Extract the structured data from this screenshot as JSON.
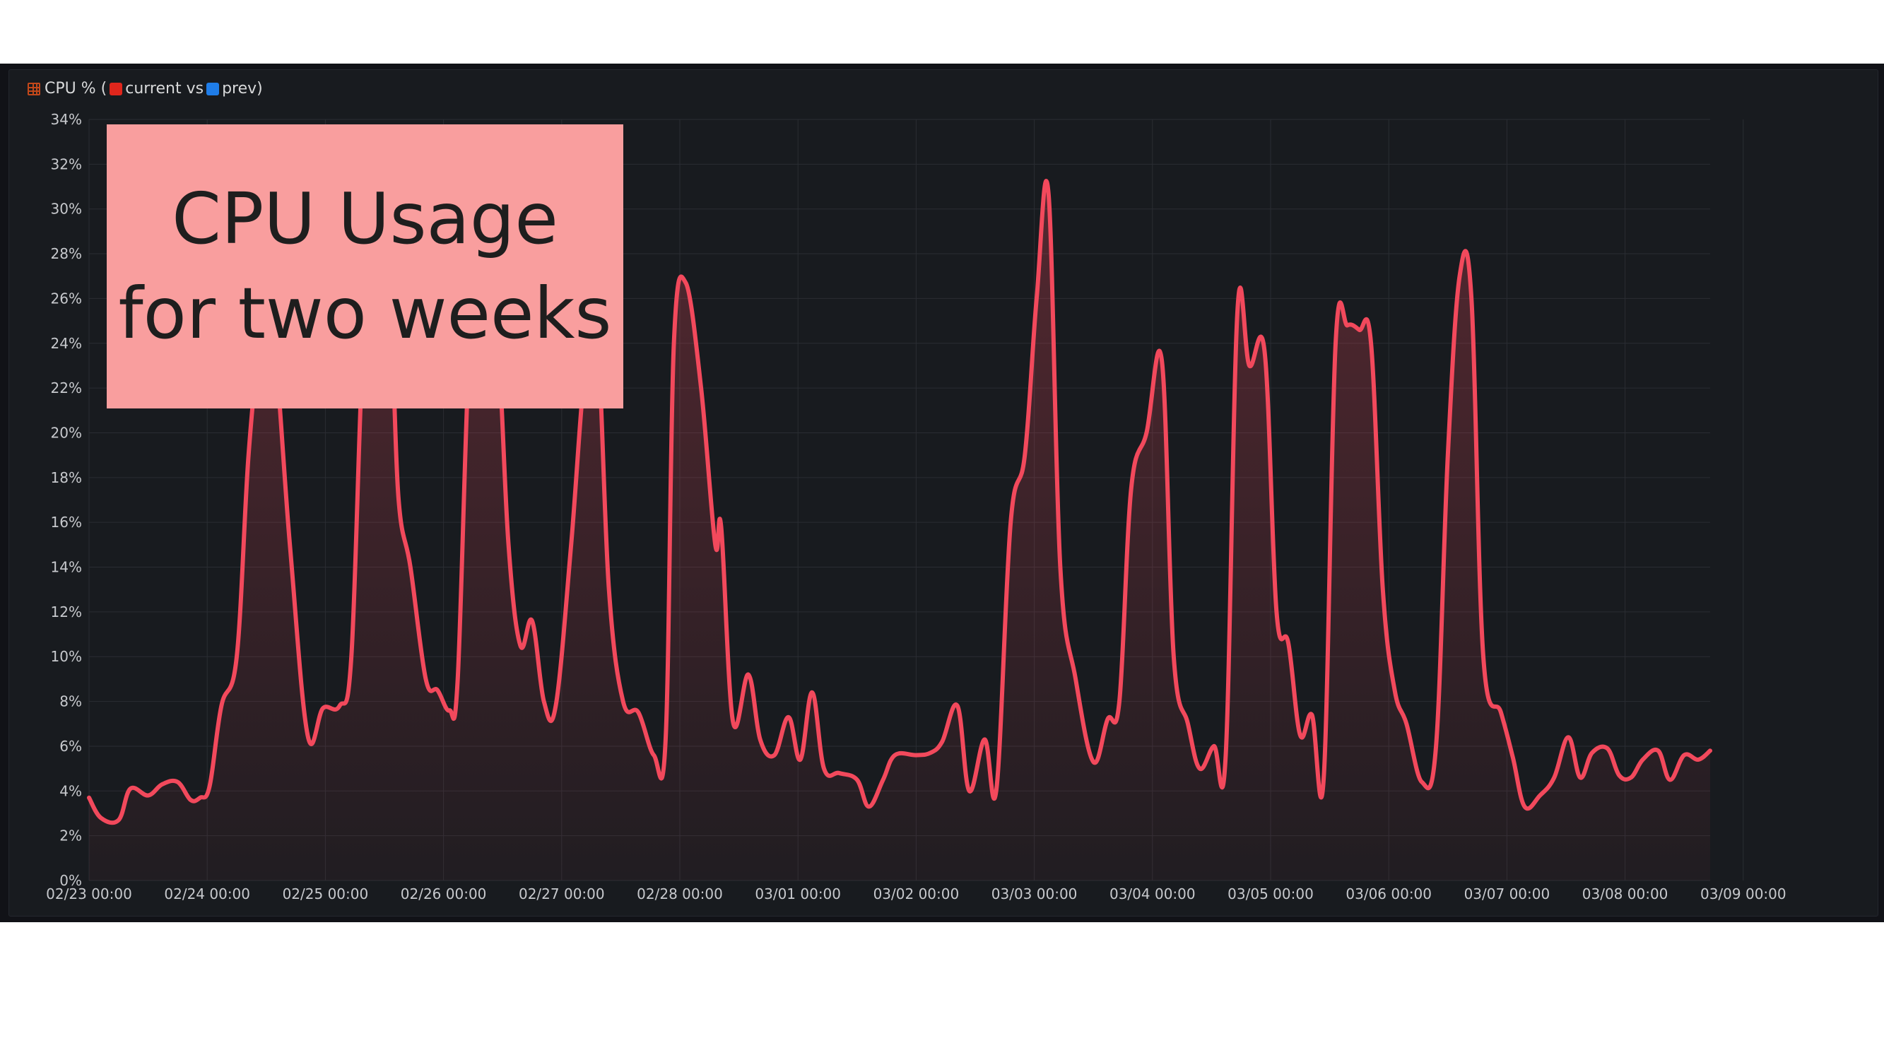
{
  "panel": {
    "title_prefix": "CPU % (",
    "title_current": "current vs",
    "title_prev": "prev)",
    "title_icon": "table-icon",
    "current_color": "#e0261c",
    "prev_color": "#1f7de8"
  },
  "overlay": {
    "line1": "CPU Usage",
    "line2": "for two weeks",
    "background": "#f99e9e"
  },
  "chart_data": {
    "type": "area",
    "title": "CPU % (current vs prev)",
    "xlabel": "",
    "ylabel": "",
    "ylim": [
      0,
      34
    ],
    "yticks": [
      "0%",
      "2%",
      "4%",
      "6%",
      "8%",
      "10%",
      "12%",
      "14%",
      "16%",
      "18%",
      "20%",
      "22%",
      "24%",
      "26%",
      "28%",
      "30%",
      "32%",
      "34%"
    ],
    "xticks": [
      "02/23 00:00",
      "02/24 00:00",
      "02/25 00:00",
      "02/26 00:00",
      "02/27 00:00",
      "02/28 00:00",
      "03/01 00:00",
      "03/02 00:00",
      "03/03 00:00",
      "03/04 00:00",
      "03/05 00:00",
      "03/06 00:00",
      "03/07 00:00",
      "03/08 00:00",
      "03/09 00:00"
    ],
    "x_unit": "days since 02/23 00:00",
    "grid": true,
    "line_color": "#f2495c",
    "series": [
      {
        "name": "current",
        "points": [
          [
            0.0,
            3.7
          ],
          [
            0.1,
            2.8
          ],
          [
            0.25,
            2.7
          ],
          [
            0.35,
            4.1
          ],
          [
            0.5,
            3.8
          ],
          [
            0.62,
            4.3
          ],
          [
            0.75,
            4.4
          ],
          [
            0.86,
            3.6
          ],
          [
            0.94,
            3.7
          ],
          [
            1.02,
            4.2
          ],
          [
            1.12,
            7.8
          ],
          [
            1.25,
            10
          ],
          [
            1.35,
            19
          ],
          [
            1.45,
            24
          ],
          [
            1.55,
            25
          ],
          [
            1.7,
            15
          ],
          [
            1.85,
            6.5
          ],
          [
            1.98,
            7.7
          ],
          [
            2.12,
            7.8
          ],
          [
            2.22,
            10
          ],
          [
            2.32,
            24
          ],
          [
            2.42,
            29
          ],
          [
            2.55,
            25
          ],
          [
            2.62,
            17
          ],
          [
            2.72,
            14
          ],
          [
            2.85,
            9
          ],
          [
            2.95,
            8.5
          ],
          [
            3.05,
            7.6
          ],
          [
            3.12,
            9
          ],
          [
            3.22,
            24
          ],
          [
            3.32,
            29
          ],
          [
            3.45,
            25
          ],
          [
            3.55,
            15
          ],
          [
            3.65,
            10.5
          ],
          [
            3.75,
            11.6
          ],
          [
            3.85,
            8
          ],
          [
            3.95,
            7.8
          ],
          [
            4.08,
            15
          ],
          [
            4.2,
            23
          ],
          [
            4.3,
            24.4
          ],
          [
            4.4,
            13
          ],
          [
            4.52,
            8
          ],
          [
            4.65,
            7.5
          ],
          [
            4.78,
            5.6
          ],
          [
            4.88,
            6.3
          ],
          [
            4.95,
            24
          ],
          [
            5.05,
            26.7
          ],
          [
            5.18,
            22
          ],
          [
            5.3,
            15
          ],
          [
            5.35,
            15.8
          ],
          [
            5.45,
            7.1
          ],
          [
            5.58,
            9.2
          ],
          [
            5.68,
            6.3
          ],
          [
            5.8,
            5.6
          ],
          [
            5.92,
            7.3
          ],
          [
            6.02,
            5.4
          ],
          [
            6.12,
            8.4
          ],
          [
            6.22,
            5
          ],
          [
            6.35,
            4.8
          ],
          [
            6.5,
            4.5
          ],
          [
            6.6,
            3.3
          ],
          [
            6.72,
            4.5
          ],
          [
            6.82,
            5.6
          ],
          [
            7.0,
            5.6
          ],
          [
            7.12,
            5.7
          ],
          [
            7.22,
            6.2
          ],
          [
            7.35,
            7.8
          ],
          [
            7.45,
            4
          ],
          [
            7.58,
            6.3
          ],
          [
            7.68,
            4.1
          ],
          [
            7.8,
            16
          ],
          [
            7.92,
            19
          ],
          [
            8.02,
            26
          ],
          [
            8.12,
            30.7
          ],
          [
            8.22,
            14
          ],
          [
            8.35,
            9
          ],
          [
            8.5,
            5.3
          ],
          [
            8.62,
            7.2
          ],
          [
            8.72,
            8
          ],
          [
            8.82,
            17.5
          ],
          [
            8.95,
            20
          ],
          [
            9.08,
            23.2
          ],
          [
            9.18,
            10
          ],
          [
            9.3,
            7
          ],
          [
            9.4,
            5
          ],
          [
            9.52,
            6
          ],
          [
            9.62,
            5.6
          ],
          [
            9.72,
            25.5
          ],
          [
            9.82,
            23
          ],
          [
            9.95,
            23.6
          ],
          [
            10.05,
            12
          ],
          [
            10.15,
            10.6
          ],
          [
            10.25,
            6.5
          ],
          [
            10.35,
            7.4
          ],
          [
            10.45,
            4.6
          ],
          [
            10.55,
            24
          ],
          [
            10.65,
            24.8
          ],
          [
            10.75,
            24.6
          ],
          [
            10.85,
            24
          ],
          [
            10.95,
            13
          ],
          [
            11.05,
            8.5
          ],
          [
            11.15,
            7
          ],
          [
            11.28,
            4.4
          ],
          [
            11.4,
            6
          ],
          [
            11.5,
            19
          ],
          [
            11.6,
            27
          ],
          [
            11.7,
            26
          ],
          [
            11.8,
            10
          ],
          [
            11.95,
            7.5
          ],
          [
            12.05,
            5.5
          ],
          [
            12.15,
            3.3
          ],
          [
            12.28,
            3.8
          ],
          [
            12.4,
            4.6
          ],
          [
            12.52,
            6.4
          ],
          [
            12.62,
            4.6
          ],
          [
            12.72,
            5.7
          ],
          [
            12.85,
            5.9
          ],
          [
            12.95,
            4.7
          ],
          [
            13.05,
            4.6
          ],
          [
            13.15,
            5.4
          ],
          [
            13.28,
            5.8
          ],
          [
            13.38,
            4.5
          ],
          [
            13.5,
            5.6
          ],
          [
            13.62,
            5.4
          ],
          [
            13.72,
            5.8
          ]
        ]
      }
    ]
  }
}
